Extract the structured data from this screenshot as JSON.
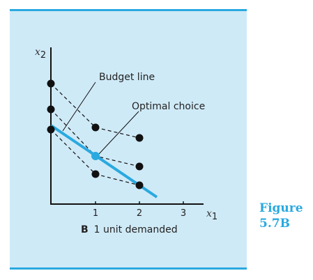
{
  "figure": {
    "label_line1": "Figure",
    "label_line2": "5.7B",
    "caption_letter": "B",
    "caption_text": "1 unit demanded"
  },
  "axes": {
    "x_label_var": "x",
    "x_label_sub": "1",
    "y_label_var": "x",
    "y_label_sub": "2",
    "x_ticks": [
      "1",
      "2",
      "3"
    ]
  },
  "annotations": {
    "budget_line": "Budget line",
    "optimal_choice": "Optimal choice"
  },
  "colors": {
    "accent": "#29a9e0",
    "panel": "#cfeaf7",
    "ink": "#111111"
  }
}
